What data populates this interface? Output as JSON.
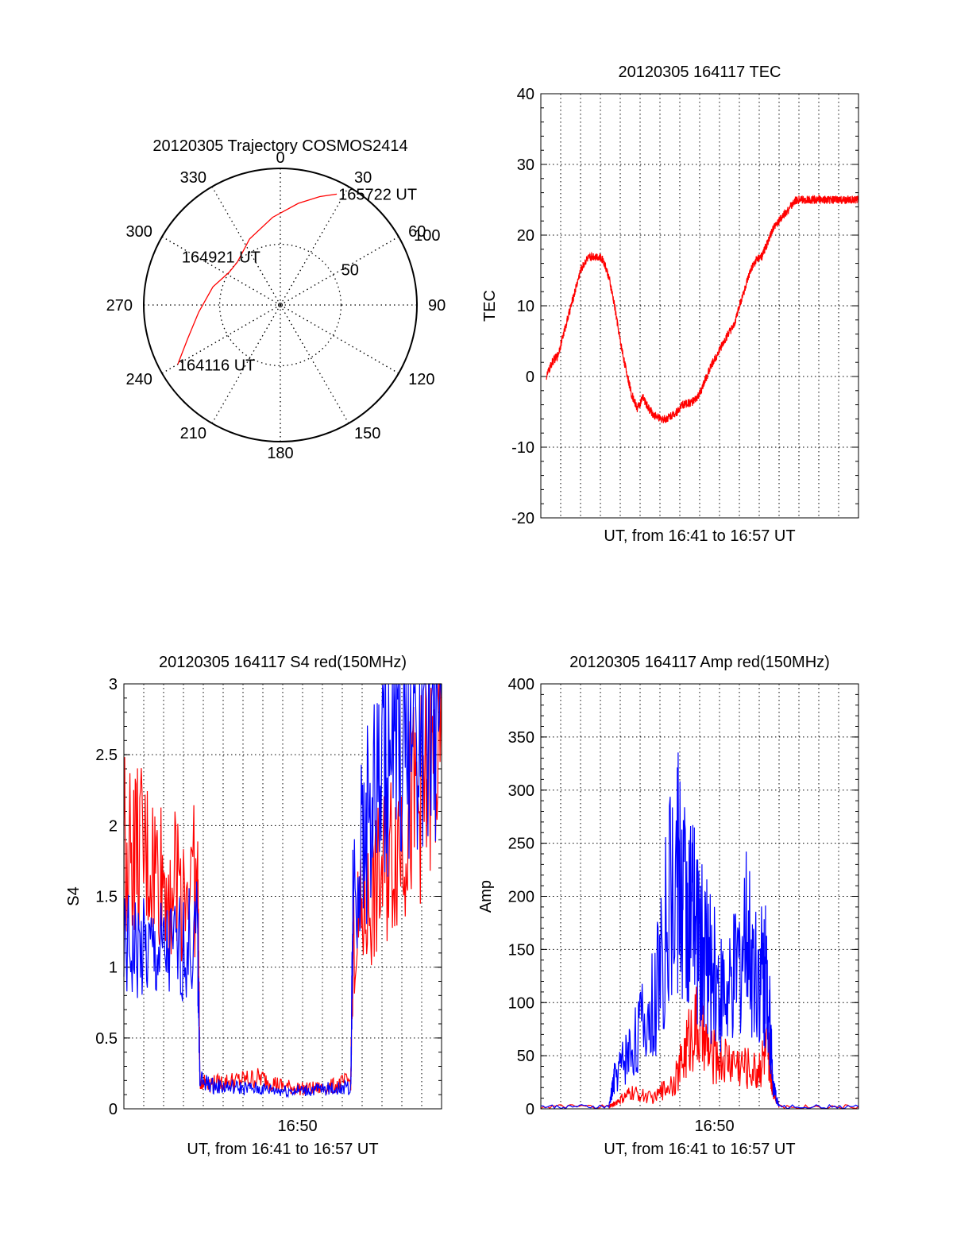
{
  "figure": {
    "background": "#ffffff"
  },
  "colors": {
    "red": "#ff0000",
    "blue": "#0000ff",
    "axis": "#000000",
    "grid": "#000000"
  },
  "chart_data": [
    {
      "id": "polar",
      "type": "polar-trajectory",
      "title": "20120305 Trajectory COSMOS2414",
      "azimuth_labels": [
        "0",
        "30",
        "60",
        "90",
        "120",
        "150",
        "180",
        "210",
        "240",
        "270",
        "300",
        "330"
      ],
      "elevation_rings": [
        90,
        50
      ],
      "ring_labels": [
        {
          "elevation": 50,
          "text": "50"
        },
        {
          "elevation": 0,
          "text": "100"
        }
      ],
      "trajectory": {
        "color": "#ff0000",
        "points": [
          [
            240,
            12
          ],
          [
            250,
            25
          ],
          [
            265,
            36
          ],
          [
            285,
            44
          ],
          [
            303,
            50
          ],
          [
            315,
            50
          ],
          [
            335,
            42
          ],
          [
            355,
            32
          ],
          [
            10,
            22
          ],
          [
            20,
            14
          ],
          [
            27,
            8
          ]
        ]
      },
      "annotations": [
        {
          "text": "164116 UT",
          "az": 240,
          "el": 12
        },
        {
          "text": "164921 UT",
          "az": 303,
          "el": 50
        },
        {
          "text": "165722 UT",
          "az": 27,
          "el": 8
        }
      ]
    },
    {
      "id": "tec",
      "type": "line",
      "title": "20120305 164117 TEC",
      "xlabel": "UT, from 16:41 to 16:57 UT",
      "ylabel": "TEC",
      "xlim": [
        16.68,
        16.96
      ],
      "ylim": [
        -20,
        40
      ],
      "yticks": [
        "40",
        "30",
        "20",
        "10",
        "0",
        "-10",
        "-20"
      ],
      "xticks": [],
      "grid": true,
      "series": [
        {
          "name": "TEC",
          "color": "#ff0000",
          "x": [
            16.685,
            16.69,
            16.695,
            16.7,
            16.705,
            16.71,
            16.715,
            16.72,
            16.725,
            16.73,
            16.735,
            16.74,
            16.745,
            16.75,
            16.755,
            16.76,
            16.765,
            16.77,
            16.775,
            16.78,
            16.785,
            16.79,
            16.795,
            16.8,
            16.805,
            16.81,
            16.815,
            16.82,
            16.825,
            16.83,
            16.835,
            16.84,
            16.845,
            16.85,
            16.855,
            16.86,
            16.865,
            16.87,
            16.875,
            16.88,
            16.885,
            16.89,
            16.895,
            16.9,
            16.905,
            16.91,
            16.915,
            16.92,
            16.925,
            16.93,
            16.935,
            16.94,
            16.945,
            16.95,
            16.955,
            16.96
          ],
          "y": [
            0,
            2,
            3,
            6,
            9,
            12,
            15,
            16.5,
            17,
            17,
            16.5,
            14,
            10,
            5,
            1,
            -2.5,
            -4.5,
            -3,
            -4.5,
            -5.5,
            -6,
            -6,
            -5.5,
            -5,
            -4,
            -3.8,
            -3.5,
            -2.5,
            -0.5,
            1.5,
            3,
            4.5,
            6,
            7,
            10,
            12.5,
            15,
            16.5,
            17,
            19,
            21,
            22,
            23,
            24,
            25,
            25,
            25,
            25,
            25,
            25,
            25,
            25,
            25,
            25,
            25,
            25
          ]
        }
      ]
    },
    {
      "id": "s4",
      "type": "line",
      "title": "20120305 164117 S4 red(150MHz)",
      "xlabel": "UT, from 16:41 to 16:57 UT",
      "ylabel": "S4",
      "xlim": [
        16.68,
        16.96
      ],
      "ylim": [
        0,
        3
      ],
      "yticks": [
        "3",
        "2.5",
        "2",
        "1.5",
        "1",
        "0.5",
        "0"
      ],
      "xticks": [
        {
          "value": 16.833,
          "label": "16:50"
        }
      ],
      "grid": true,
      "series": [
        {
          "name": "red",
          "color": "#ff0000",
          "x": [
            16.68,
            16.7,
            16.72,
            16.745,
            16.747,
            16.76,
            16.78,
            16.8,
            16.82,
            16.84,
            16.86,
            16.88,
            16.882,
            16.9,
            16.92,
            16.94,
            16.96
          ],
          "y": [
            1.9,
            1.75,
            1.6,
            1.6,
            0.2,
            0.18,
            0.2,
            0.22,
            0.16,
            0.14,
            0.15,
            0.2,
            1.2,
            1.5,
            1.9,
            2.2,
            2.5
          ]
        },
        {
          "name": "blue",
          "color": "#0000ff",
          "x": [
            16.68,
            16.7,
            16.72,
            16.745,
            16.747,
            16.76,
            16.78,
            16.8,
            16.82,
            16.84,
            16.86,
            16.88,
            16.882,
            16.9,
            16.92,
            16.94,
            16.96
          ],
          "y": [
            1.15,
            1.1,
            1.1,
            1.2,
            0.2,
            0.16,
            0.15,
            0.14,
            0.13,
            0.13,
            0.14,
            0.15,
            1.6,
            2.2,
            2.6,
            2.8,
            2.9
          ]
        }
      ]
    },
    {
      "id": "amp",
      "type": "line",
      "title": "20120305 164117 Amp red(150MHz)",
      "xlabel": "UT, from 16:41 to 16:57 UT",
      "ylabel": "Amp",
      "xlim": [
        16.68,
        16.96
      ],
      "ylim": [
        0,
        400
      ],
      "yticks": [
        "400",
        "350",
        "300",
        "250",
        "200",
        "150",
        "100",
        "50",
        "0"
      ],
      "xticks": [
        {
          "value": 16.833,
          "label": "16:50"
        }
      ],
      "grid": true,
      "series": [
        {
          "name": "red",
          "color": "#ff0000",
          "x": [
            16.68,
            16.74,
            16.745,
            16.76,
            16.78,
            16.8,
            16.815,
            16.83,
            16.85,
            16.87,
            16.88,
            16.885,
            16.89,
            16.96
          ],
          "y": [
            2,
            2,
            5,
            15,
            10,
            30,
            80,
            50,
            45,
            35,
            55,
            20,
            2,
            2
          ]
        },
        {
          "name": "blue",
          "color": "#0000ff",
          "x": [
            16.68,
            16.74,
            16.745,
            16.76,
            16.78,
            16.8,
            16.81,
            16.82,
            16.83,
            16.845,
            16.86,
            16.875,
            16.88,
            16.885,
            16.89,
            16.96
          ],
          "y": [
            2,
            2,
            30,
            60,
            100,
            230,
            190,
            160,
            130,
            100,
            160,
            130,
            120,
            20,
            2,
            2
          ]
        }
      ]
    }
  ]
}
